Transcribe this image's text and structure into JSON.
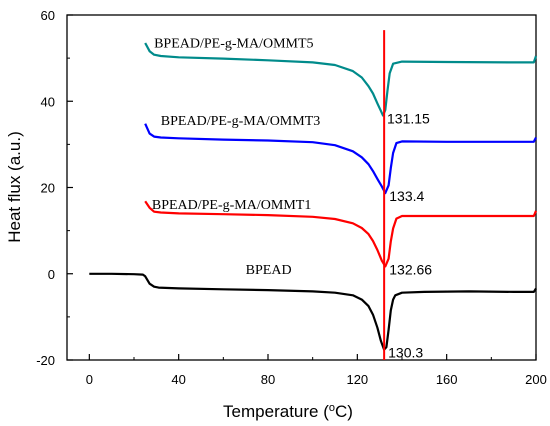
{
  "chart_data": {
    "type": "line",
    "xlabel": "Temperature (oC)",
    "xlabel_main": "Temperature (",
    "xlabel_sup": "o",
    "xlabel_tail": "C)",
    "ylabel": "Heat flux (a.u.)",
    "xlim": [
      -10,
      200
    ],
    "ylim": [
      -20,
      60
    ],
    "xticks": [
      0,
      40,
      80,
      120,
      160,
      200
    ],
    "yticks": [
      -20,
      0,
      20,
      40,
      60
    ],
    "vertical_line": {
      "x": 132,
      "color": "#ff0000"
    },
    "series": [
      {
        "name": "BPEAD",
        "color": "#000000",
        "label_at": [
          70,
          0
        ],
        "peak": {
          "x": 132.0,
          "y": -17.6,
          "label": "130.3"
        },
        "points": [
          [
            0,
            0
          ],
          [
            10,
            0
          ],
          [
            20,
            -0.1
          ],
          [
            24,
            -0.2
          ],
          [
            25,
            -0.6
          ],
          [
            27,
            -2.3
          ],
          [
            29,
            -3.0
          ],
          [
            31,
            -3.2
          ],
          [
            40,
            -3.4
          ],
          [
            60,
            -3.6
          ],
          [
            80,
            -3.8
          ],
          [
            100,
            -4.1
          ],
          [
            110,
            -4.4
          ],
          [
            118,
            -5.0
          ],
          [
            122,
            -6.0
          ],
          [
            125,
            -7.5
          ],
          [
            127,
            -9.5
          ],
          [
            129,
            -12.5
          ],
          [
            130.5,
            -15.5
          ],
          [
            132,
            -17.6
          ],
          [
            133,
            -17.0
          ],
          [
            134,
            -13.0
          ],
          [
            135,
            -8.5
          ],
          [
            136,
            -6.0
          ],
          [
            137,
            -5.0
          ],
          [
            140,
            -4.4
          ],
          [
            150,
            -4.2
          ],
          [
            170,
            -4.1
          ],
          [
            190,
            -4.2
          ],
          [
            199,
            -4.2
          ],
          [
            200,
            -3.4
          ]
        ]
      },
      {
        "name": "BPEAD/PE-g-MA/OMMT1",
        "color": "#ff0000",
        "label_at": [
          28,
          15
        ],
        "peak": {
          "x": 132.5,
          "y": 1.7,
          "label": "132.66"
        },
        "points": [
          [
            25,
            16.8
          ],
          [
            27,
            15.3
          ],
          [
            29,
            14.4
          ],
          [
            32,
            14.2
          ],
          [
            40,
            14.0
          ],
          [
            60,
            13.8
          ],
          [
            80,
            13.6
          ],
          [
            100,
            13.2
          ],
          [
            110,
            12.7
          ],
          [
            118,
            11.7
          ],
          [
            122,
            10.6
          ],
          [
            125,
            9.2
          ],
          [
            127,
            7.6
          ],
          [
            129,
            5.5
          ],
          [
            131,
            3.0
          ],
          [
            132.5,
            1.7
          ],
          [
            134,
            3.5
          ],
          [
            135,
            7.5
          ],
          [
            136,
            10.5
          ],
          [
            137.5,
            12.8
          ],
          [
            140,
            13.4
          ],
          [
            160,
            13.4
          ],
          [
            190,
            13.4
          ],
          [
            199,
            13.4
          ],
          [
            200,
            14.6
          ]
        ]
      },
      {
        "name": "BPEAD/PE-g-MA/OMMT3",
        "color": "#0000ff",
        "label_at": [
          32,
          34.5
        ],
        "peak": {
          "x": 132.5,
          "y": 18.7,
          "label": "133.4"
        },
        "points": [
          [
            25,
            34.8
          ],
          [
            27,
            32.5
          ],
          [
            29,
            31.8
          ],
          [
            32,
            31.6
          ],
          [
            40,
            31.4
          ],
          [
            60,
            31.1
          ],
          [
            80,
            30.9
          ],
          [
            100,
            30.5
          ],
          [
            110,
            29.8
          ],
          [
            118,
            28.4
          ],
          [
            122,
            27.0
          ],
          [
            125,
            25.4
          ],
          [
            127,
            23.8
          ],
          [
            129,
            22.0
          ],
          [
            131,
            20.2
          ],
          [
            132.5,
            18.7
          ],
          [
            134,
            20.5
          ],
          [
            135,
            24.5
          ],
          [
            136,
            28.0
          ],
          [
            137.5,
            30.3
          ],
          [
            140,
            30.7
          ],
          [
            160,
            30.6
          ],
          [
            190,
            30.6
          ],
          [
            199,
            30.6
          ],
          [
            200,
            31.6
          ]
        ]
      },
      {
        "name": "BPEAD/PE-g-MA/OMMT5",
        "color": "#008b8b",
        "label_at": [
          29,
          52.5
        ],
        "peak": {
          "x": 131.5,
          "y": 36.7,
          "label": "131.15"
        },
        "points": [
          [
            25,
            53.5
          ],
          [
            27,
            51.6
          ],
          [
            29,
            50.8
          ],
          [
            32,
            50.5
          ],
          [
            40,
            50.2
          ],
          [
            60,
            49.9
          ],
          [
            80,
            49.5
          ],
          [
            100,
            49.0
          ],
          [
            110,
            48.4
          ],
          [
            118,
            47.0
          ],
          [
            122,
            45.5
          ],
          [
            125,
            43.5
          ],
          [
            127,
            41.8
          ],
          [
            129,
            39.5
          ],
          [
            130.5,
            37.8
          ],
          [
            131.5,
            36.7
          ],
          [
            132.5,
            38.0
          ],
          [
            133.5,
            42.5
          ],
          [
            134.5,
            46.5
          ],
          [
            136,
            48.7
          ],
          [
            140,
            49.2
          ],
          [
            160,
            49.1
          ],
          [
            190,
            49.0
          ],
          [
            199,
            49.0
          ],
          [
            200,
            50.5
          ]
        ]
      }
    ]
  }
}
